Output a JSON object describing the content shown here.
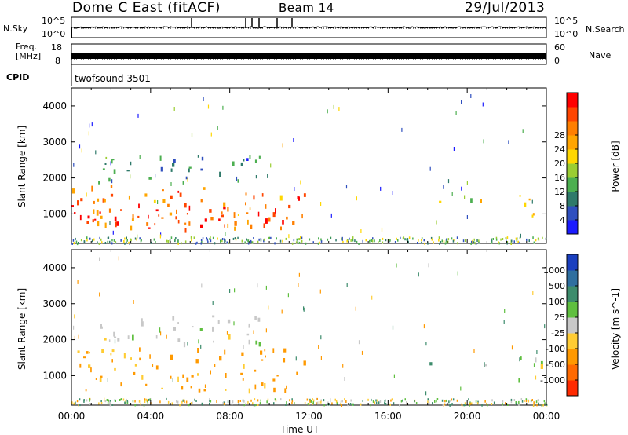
{
  "header": {
    "radar": "Dome C East (fitACF)",
    "beam": "Beam 14",
    "date": "29/Jul/2013"
  },
  "strip_labels": {
    "nsky": "N.Sky",
    "nsky_top": "10^5",
    "nsky_bottom": "10^0",
    "nsearch": "N.Search",
    "nsearch_top": "10^5",
    "nsearch_bottom": "10^0",
    "freq_line1": "Freq.",
    "freq_line2": "[MHz]",
    "freq_top": "18",
    "freq_bottom": "8",
    "nave": "Nave",
    "nave_top": "60",
    "nave_bottom": "0",
    "cpid": "CPID",
    "cpid_value": "twofsound 3501"
  },
  "colors": {
    "power_scale": [
      "#1a1aff",
      "#2f4fbf",
      "#2f7a6a",
      "#4caf50",
      "#9acd32",
      "#ffd700",
      "#ffa500",
      "#ff7f00",
      "#ff4500",
      "#ff0000"
    ],
    "velocity_scale": [
      "#1a3fbf",
      "#2f6f9f",
      "#3d8c6c",
      "#5fbf3f",
      "#c8c8c8",
      "#ffcc33",
      "#ff9900",
      "#ff6a00",
      "#ff2a00"
    ]
  },
  "chart_data": [
    {
      "type": "heatmap",
      "quantity": "power",
      "ylabel": "Slant Range [km]",
      "yticks": [
        "1000",
        "2000",
        "3000",
        "4000"
      ],
      "ylim": [
        180,
        4500
      ],
      "colorbar_label": "Power [dB]",
      "colorbar_ticks": [
        "4",
        "8",
        "12",
        "16",
        "20",
        "24",
        "28"
      ],
      "colorbar_range": [
        0,
        32
      ],
      "blobs": [
        {
          "t0": 0.0,
          "t1": 11.8,
          "r0": 600,
          "r1": 1800,
          "value": 24
        },
        {
          "t0": 0.0,
          "t1": 10.5,
          "r0": 700,
          "r1": 1300,
          "value": 28
        },
        {
          "t0": 1.0,
          "t1": 9.5,
          "r0": 1900,
          "r1": 2700,
          "value": 8
        },
        {
          "t0": 18.0,
          "t1": 18.8,
          "r0": 1300,
          "r1": 1600,
          "value": 14
        },
        {
          "t0": 20.0,
          "t1": 21.2,
          "r0": 1200,
          "r1": 1600,
          "value": 18
        },
        {
          "t0": 22.5,
          "t1": 24.0,
          "r0": 900,
          "r1": 1600,
          "value": 22
        }
      ]
    },
    {
      "type": "heatmap",
      "quantity": "velocity",
      "xlabel": "Time UT",
      "ylabel": "Slant Range [km]",
      "yticks": [
        "1000",
        "2000",
        "3000",
        "4000"
      ],
      "ylim": [
        180,
        4500
      ],
      "xticks": [
        "00:00",
        "04:00",
        "08:00",
        "12:00",
        "16:00",
        "20:00",
        "00:00"
      ],
      "xlim": [
        0,
        24
      ],
      "colorbar_label": "Velocity [m s^-1]",
      "colorbar_ticks": [
        "1000",
        "500",
        "100",
        "25",
        "-25",
        "-100",
        "-500",
        "-1000"
      ],
      "blobs": [
        {
          "t0": 0.0,
          "t1": 11.8,
          "r0": 600,
          "r1": 1800,
          "value": -200
        },
        {
          "t0": 1.0,
          "t1": 9.5,
          "r0": 1900,
          "r1": 2700,
          "value": 0
        },
        {
          "t0": 18.0,
          "t1": 18.8,
          "r0": 1300,
          "r1": 1600,
          "value": 50
        },
        {
          "t0": 20.0,
          "t1": 21.2,
          "r0": 1200,
          "r1": 1600,
          "value": 50
        },
        {
          "t0": 22.5,
          "t1": 24.0,
          "r0": 900,
          "r1": 1600,
          "value": 60
        }
      ]
    }
  ]
}
